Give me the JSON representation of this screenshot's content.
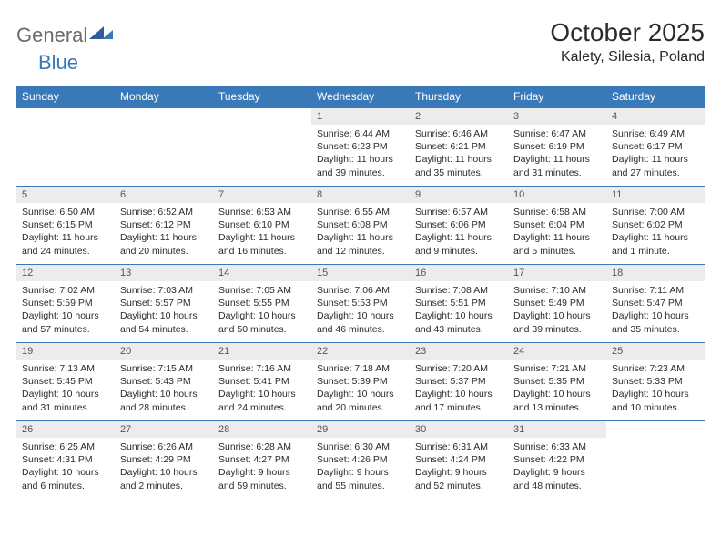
{
  "brand": {
    "part1": "General",
    "part2": "Blue"
  },
  "title": "October 2025",
  "location": "Kalety, Silesia, Poland",
  "header_bg": "#3a79b7",
  "daynum_bg": "#ececec",
  "border_color": "#3a79b7",
  "text_color": "#2b2b2b",
  "dayhead_fontsize": 12,
  "title_fontsize": 28,
  "cell_fontsize": 10.5,
  "weekdays": [
    "Sunday",
    "Monday",
    "Tuesday",
    "Wednesday",
    "Thursday",
    "Friday",
    "Saturday"
  ],
  "weeks": [
    [
      null,
      null,
      null,
      {
        "n": "1",
        "sr": "6:44 AM",
        "ss": "6:23 PM",
        "dl": "11 hours and 39 minutes."
      },
      {
        "n": "2",
        "sr": "6:46 AM",
        "ss": "6:21 PM",
        "dl": "11 hours and 35 minutes."
      },
      {
        "n": "3",
        "sr": "6:47 AM",
        "ss": "6:19 PM",
        "dl": "11 hours and 31 minutes."
      },
      {
        "n": "4",
        "sr": "6:49 AM",
        "ss": "6:17 PM",
        "dl": "11 hours and 27 minutes."
      }
    ],
    [
      {
        "n": "5",
        "sr": "6:50 AM",
        "ss": "6:15 PM",
        "dl": "11 hours and 24 minutes."
      },
      {
        "n": "6",
        "sr": "6:52 AM",
        "ss": "6:12 PM",
        "dl": "11 hours and 20 minutes."
      },
      {
        "n": "7",
        "sr": "6:53 AM",
        "ss": "6:10 PM",
        "dl": "11 hours and 16 minutes."
      },
      {
        "n": "8",
        "sr": "6:55 AM",
        "ss": "6:08 PM",
        "dl": "11 hours and 12 minutes."
      },
      {
        "n": "9",
        "sr": "6:57 AM",
        "ss": "6:06 PM",
        "dl": "11 hours and 9 minutes."
      },
      {
        "n": "10",
        "sr": "6:58 AM",
        "ss": "6:04 PM",
        "dl": "11 hours and 5 minutes."
      },
      {
        "n": "11",
        "sr": "7:00 AM",
        "ss": "6:02 PM",
        "dl": "11 hours and 1 minute."
      }
    ],
    [
      {
        "n": "12",
        "sr": "7:02 AM",
        "ss": "5:59 PM",
        "dl": "10 hours and 57 minutes."
      },
      {
        "n": "13",
        "sr": "7:03 AM",
        "ss": "5:57 PM",
        "dl": "10 hours and 54 minutes."
      },
      {
        "n": "14",
        "sr": "7:05 AM",
        "ss": "5:55 PM",
        "dl": "10 hours and 50 minutes."
      },
      {
        "n": "15",
        "sr": "7:06 AM",
        "ss": "5:53 PM",
        "dl": "10 hours and 46 minutes."
      },
      {
        "n": "16",
        "sr": "7:08 AM",
        "ss": "5:51 PM",
        "dl": "10 hours and 43 minutes."
      },
      {
        "n": "17",
        "sr": "7:10 AM",
        "ss": "5:49 PM",
        "dl": "10 hours and 39 minutes."
      },
      {
        "n": "18",
        "sr": "7:11 AM",
        "ss": "5:47 PM",
        "dl": "10 hours and 35 minutes."
      }
    ],
    [
      {
        "n": "19",
        "sr": "7:13 AM",
        "ss": "5:45 PM",
        "dl": "10 hours and 31 minutes."
      },
      {
        "n": "20",
        "sr": "7:15 AM",
        "ss": "5:43 PM",
        "dl": "10 hours and 28 minutes."
      },
      {
        "n": "21",
        "sr": "7:16 AM",
        "ss": "5:41 PM",
        "dl": "10 hours and 24 minutes."
      },
      {
        "n": "22",
        "sr": "7:18 AM",
        "ss": "5:39 PM",
        "dl": "10 hours and 20 minutes."
      },
      {
        "n": "23",
        "sr": "7:20 AM",
        "ss": "5:37 PM",
        "dl": "10 hours and 17 minutes."
      },
      {
        "n": "24",
        "sr": "7:21 AM",
        "ss": "5:35 PM",
        "dl": "10 hours and 13 minutes."
      },
      {
        "n": "25",
        "sr": "7:23 AM",
        "ss": "5:33 PM",
        "dl": "10 hours and 10 minutes."
      }
    ],
    [
      {
        "n": "26",
        "sr": "6:25 AM",
        "ss": "4:31 PM",
        "dl": "10 hours and 6 minutes."
      },
      {
        "n": "27",
        "sr": "6:26 AM",
        "ss": "4:29 PM",
        "dl": "10 hours and 2 minutes."
      },
      {
        "n": "28",
        "sr": "6:28 AM",
        "ss": "4:27 PM",
        "dl": "9 hours and 59 minutes."
      },
      {
        "n": "29",
        "sr": "6:30 AM",
        "ss": "4:26 PM",
        "dl": "9 hours and 55 minutes."
      },
      {
        "n": "30",
        "sr": "6:31 AM",
        "ss": "4:24 PM",
        "dl": "9 hours and 52 minutes."
      },
      {
        "n": "31",
        "sr": "6:33 AM",
        "ss": "4:22 PM",
        "dl": "9 hours and 48 minutes."
      },
      null
    ]
  ],
  "labels": {
    "sunrise": "Sunrise:",
    "sunset": "Sunset:",
    "daylight": "Daylight:"
  }
}
